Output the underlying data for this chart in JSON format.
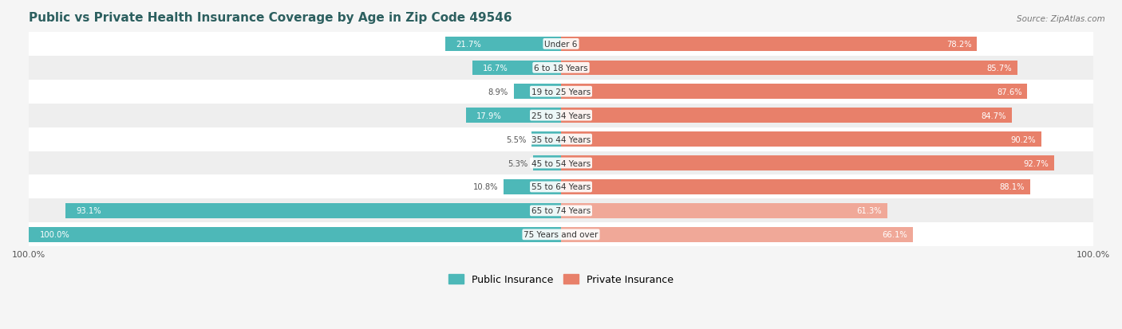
{
  "title": "Public vs Private Health Insurance Coverage by Age in Zip Code 49546",
  "source": "Source: ZipAtlas.com",
  "categories": [
    "Under 6",
    "6 to 18 Years",
    "19 to 25 Years",
    "25 to 34 Years",
    "35 to 44 Years",
    "45 to 54 Years",
    "55 to 64 Years",
    "65 to 74 Years",
    "75 Years and over"
  ],
  "public_values": [
    21.7,
    16.7,
    8.9,
    17.9,
    5.5,
    5.3,
    10.8,
    93.1,
    100.0
  ],
  "private_values": [
    78.2,
    85.7,
    87.6,
    84.7,
    90.2,
    92.7,
    88.1,
    61.3,
    66.1
  ],
  "public_color": "#4db8b8",
  "private_color_strong": "#e8806a",
  "private_color_light": "#f0a898",
  "bg_color": "#f5f5f5",
  "row_color_even": "#ffffff",
  "row_color_odd": "#eeeeee",
  "title_color": "#2c5f5f",
  "legend_public": "Public Insurance",
  "legend_private": "Private Insurance"
}
